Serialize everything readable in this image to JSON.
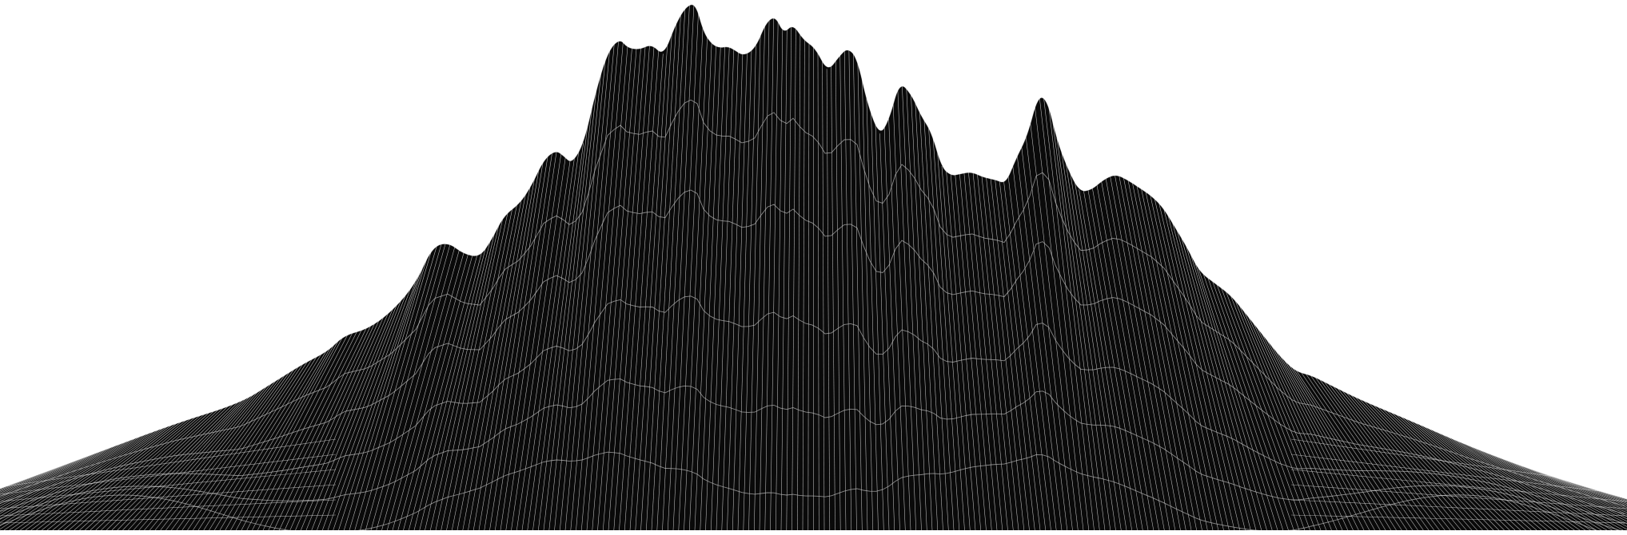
{
  "image": {
    "subject": "wireframe-terrain",
    "background_color": "#ffffff",
    "fill_color": "#0a0a0a",
    "line_color": "#ffffff",
    "contour_color": "#bfbfbf"
  }
}
